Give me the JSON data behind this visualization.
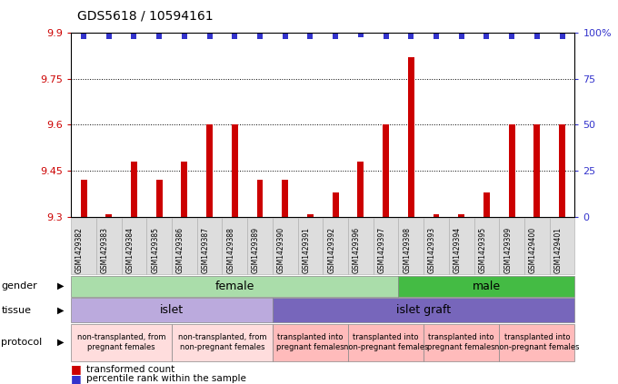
{
  "title": "GDS5618 / 10594161",
  "samples": [
    "GSM1429382",
    "GSM1429383",
    "GSM1429384",
    "GSM1429385",
    "GSM1429386",
    "GSM1429387",
    "GSM1429388",
    "GSM1429389",
    "GSM1429390",
    "GSM1429391",
    "GSM1429392",
    "GSM1429396",
    "GSM1429397",
    "GSM1429398",
    "GSM1429393",
    "GSM1429394",
    "GSM1429395",
    "GSM1429399",
    "GSM1429400",
    "GSM1429401"
  ],
  "transformed_count": [
    9.42,
    9.31,
    9.48,
    9.42,
    9.48,
    9.6,
    9.6,
    9.42,
    9.42,
    9.31,
    9.38,
    9.48,
    9.6,
    9.82,
    9.31,
    9.31,
    9.38,
    9.6,
    9.6,
    9.6
  ],
  "percentile": [
    98,
    98,
    98,
    98,
    98,
    98,
    98,
    98,
    98,
    98,
    98,
    99,
    98,
    98,
    98,
    98,
    98,
    98,
    98,
    98
  ],
  "ylim_left": [
    9.3,
    9.9
  ],
  "ylim_right": [
    0,
    100
  ],
  "yticks_left": [
    9.3,
    9.45,
    9.6,
    9.75,
    9.9
  ],
  "yticks_right": [
    0,
    25,
    50,
    75,
    100
  ],
  "bar_color": "#cc0000",
  "dot_color": "#3333cc",
  "bar_base": 9.3,
  "gender_groups": [
    {
      "label": "female",
      "start": 0,
      "end": 13,
      "color": "#aaddaa"
    },
    {
      "label": "male",
      "start": 13,
      "end": 20,
      "color": "#44bb44"
    }
  ],
  "tissue_groups": [
    {
      "label": "islet",
      "start": 0,
      "end": 8,
      "color": "#bbaadd"
    },
    {
      "label": "islet graft",
      "start": 8,
      "end": 20,
      "color": "#7766bb"
    }
  ],
  "protocol_groups": [
    {
      "label": "non-transplanted, from\npregnant females",
      "start": 0,
      "end": 4,
      "color": "#ffdddd"
    },
    {
      "label": "non-transplanted, from\nnon-pregnant females",
      "start": 4,
      "end": 8,
      "color": "#ffdddd"
    },
    {
      "label": "transplanted into\npregnant females",
      "start": 8,
      "end": 11,
      "color": "#ffbbbb"
    },
    {
      "label": "transplanted into\nnon-pregnant females",
      "start": 11,
      "end": 14,
      "color": "#ffbbbb"
    },
    {
      "label": "transplanted into\npregnant females",
      "start": 14,
      "end": 17,
      "color": "#ffbbbb"
    },
    {
      "label": "transplanted into\nnon-pregnant females",
      "start": 17,
      "end": 20,
      "color": "#ffbbbb"
    }
  ],
  "bg_color": "#ffffff"
}
